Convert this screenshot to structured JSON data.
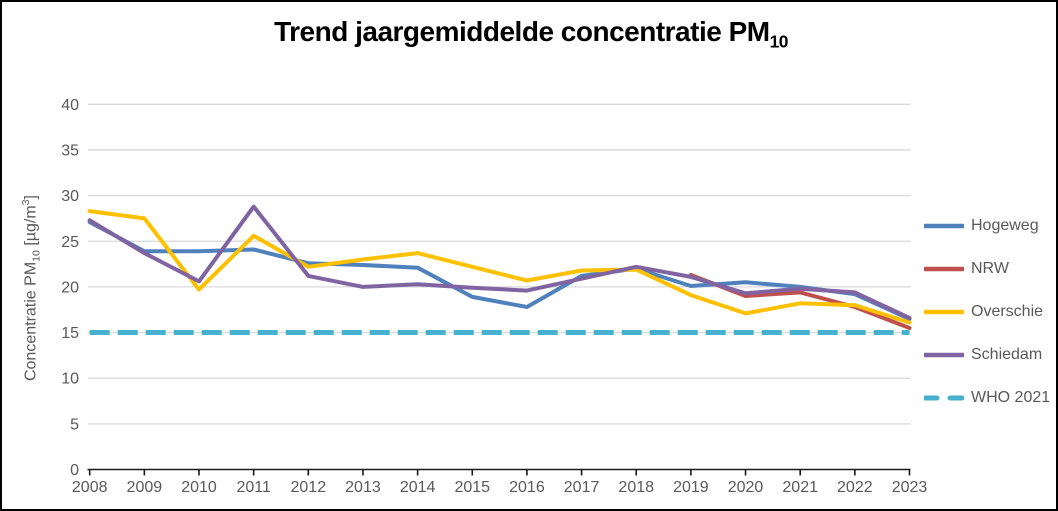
{
  "title": {
    "main": "Trend jaargemiddelde concentratie PM",
    "subscript": "10"
  },
  "y_axis": {
    "label_prefix": "Concentratie PM",
    "label_sub": "10",
    "label_mid": " [µg/m",
    "label_sup": "3",
    "label_suffix": "]",
    "ticks": [
      0,
      5,
      10,
      15,
      20,
      25,
      30,
      35,
      40
    ]
  },
  "x_axis": {
    "ticks": [
      "2008",
      "2009",
      "2010",
      "2011",
      "2012",
      "2013",
      "2014",
      "2015",
      "2016",
      "2017",
      "2018",
      "2019",
      "2020",
      "2021",
      "2022",
      "2023"
    ]
  },
  "colors": {
    "hogeweg": "#4F81BD",
    "nrw": "#C0504D",
    "overschie": "#FFC000",
    "schiedam": "#8064A2",
    "who": "#46B1CE",
    "gridline": "#D9D9D9",
    "axis": "#1a1a1a",
    "tick_label": "#595959"
  },
  "chart_data": {
    "type": "line",
    "title": "Trend jaargemiddelde concentratie PM10",
    "ylabel": "Concentratie PM10 [µg/m3]",
    "xlabel": "",
    "ylim": [
      0,
      40
    ],
    "grid": true,
    "legend_position": "right",
    "x": [
      2008,
      2009,
      2010,
      2011,
      2012,
      2013,
      2014,
      2015,
      2016,
      2017,
      2018,
      2019,
      2020,
      2021,
      2022,
      2023
    ],
    "series": [
      {
        "name": "Hogeweg",
        "color": "#4F81BD",
        "style": "solid",
        "values": [
          27.1,
          23.9,
          23.9,
          24.1,
          22.6,
          22.4,
          22.1,
          18.9,
          17.8,
          21.2,
          22.0,
          20.1,
          20.5,
          20.0,
          19.2,
          16.5
        ]
      },
      {
        "name": "NRW",
        "color": "#C0504D",
        "style": "solid",
        "values": [
          null,
          null,
          null,
          null,
          null,
          null,
          null,
          null,
          null,
          null,
          null,
          21.3,
          19.0,
          19.4,
          17.8,
          15.5
        ]
      },
      {
        "name": "Overschie",
        "color": "#FFC000",
        "style": "solid",
        "values": [
          28.3,
          27.5,
          19.7,
          25.6,
          22.2,
          23.0,
          23.7,
          22.2,
          20.7,
          21.8,
          21.9,
          19.1,
          17.1,
          18.2,
          18.0,
          16.1
        ]
      },
      {
        "name": "Schiedam",
        "color": "#8064A2",
        "style": "solid",
        "values": [
          27.3,
          23.7,
          20.6,
          28.8,
          21.2,
          20.0,
          20.3,
          19.9,
          19.6,
          20.9,
          22.2,
          21.1,
          19.3,
          19.8,
          19.4,
          16.6
        ]
      },
      {
        "name": "WHO 2021",
        "color": "#46B1CE",
        "style": "dashed",
        "values": [
          15,
          15,
          15,
          15,
          15,
          15,
          15,
          15,
          15,
          15,
          15,
          15,
          15,
          15,
          15,
          15
        ]
      }
    ]
  }
}
